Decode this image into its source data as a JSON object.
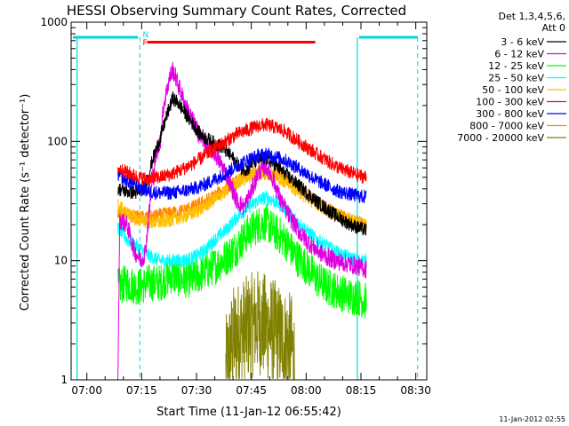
{
  "chart_data": {
    "type": "line",
    "title": "HESSI Observing Summary Count Rates, Corrected",
    "xlabel": "Start Time (11-Jan-12 06:55:42)",
    "ylabel": "Corrected Count Rate (s⁻¹ detector⁻¹)",
    "y_scale": "log",
    "ylim": [
      1,
      1000
    ],
    "xlim_minutes": [
      415.7,
      513
    ],
    "x_ticks": [
      {
        "t": 420,
        "label": "07:00"
      },
      {
        "t": 435,
        "label": "07:15"
      },
      {
        "t": 450,
        "label": "07:30"
      },
      {
        "t": 465,
        "label": "07:45"
      },
      {
        "t": 480,
        "label": "08:00"
      },
      {
        "t": 495,
        "label": "08:15"
      },
      {
        "t": 510,
        "label": "08:30"
      }
    ],
    "y_ticks": [
      {
        "v": 1,
        "label": "1"
      },
      {
        "v": 10,
        "label": "10"
      },
      {
        "v": 100,
        "label": "100"
      },
      {
        "v": 1000,
        "label": "1000"
      }
    ],
    "legend_header": [
      "Det 1,3,4,5,6,",
      "Att 0"
    ],
    "legend_placement": "right",
    "timestamp": "11-Jan-2012 02:55",
    "data_window": [
      428.5,
      496.5
    ],
    "night_intervals": [
      [
        415.7,
        434
      ],
      [
        494,
        510.5
      ]
    ],
    "saa_vlines": [
      434.5,
      510.5
    ],
    "flags": [
      {
        "label": "N",
        "t": 434.8,
        "color": "#00d8d8"
      },
      {
        "label": "F",
        "t": 434.8,
        "color": "#ff0000"
      }
    ],
    "flare_bar": {
      "t_start": 436.5,
      "t_end": 482.5,
      "value": 680,
      "color": "#ff0000"
    },
    "series": [
      {
        "name": "3 - 6 keV",
        "color": "#000000",
        "points": [
          [
            428.5,
            40
          ],
          [
            431,
            38
          ],
          [
            434,
            37
          ],
          [
            436,
            42
          ],
          [
            438,
            70
          ],
          [
            440,
            105
          ],
          [
            442,
            170
          ],
          [
            443.5,
            230
          ],
          [
            445,
            210
          ],
          [
            447,
            170
          ],
          [
            449,
            140
          ],
          [
            451,
            115
          ],
          [
            454,
            100
          ],
          [
            457,
            90
          ],
          [
            460,
            72
          ],
          [
            462,
            60
          ],
          [
            464,
            58
          ],
          [
            465,
            65
          ],
          [
            467,
            70
          ],
          [
            469,
            72
          ],
          [
            471,
            65
          ],
          [
            473,
            58
          ],
          [
            476,
            48
          ],
          [
            479,
            40
          ],
          [
            482,
            33
          ],
          [
            485,
            28
          ],
          [
            488,
            24
          ],
          [
            491,
            21
          ],
          [
            494,
            19
          ],
          [
            496.5,
            18
          ]
        ]
      },
      {
        "name": "6 - 12 keV",
        "color": "#e000e0",
        "points": [
          [
            428.5,
            1
          ],
          [
            429,
            22
          ],
          [
            431,
            20
          ],
          [
            433,
            12
          ],
          [
            435,
            10
          ],
          [
            436,
            12
          ],
          [
            438,
            50
          ],
          [
            439,
            80
          ],
          [
            440,
            95
          ],
          [
            441,
            200
          ],
          [
            442.5,
            330
          ],
          [
            443.5,
            400
          ],
          [
            445,
            300
          ],
          [
            447,
            200
          ],
          [
            449,
            150
          ],
          [
            451,
            110
          ],
          [
            453,
            90
          ],
          [
            455,
            80
          ],
          [
            458,
            55
          ],
          [
            461,
            32
          ],
          [
            463,
            28
          ],
          [
            465,
            38
          ],
          [
            467,
            55
          ],
          [
            469,
            62
          ],
          [
            471,
            48
          ],
          [
            473,
            32
          ],
          [
            476,
            22
          ],
          [
            479,
            16
          ],
          [
            482,
            13
          ],
          [
            485,
            11
          ],
          [
            488,
            10
          ],
          [
            491,
            9.5
          ],
          [
            494,
            9
          ],
          [
            496.5,
            8.5
          ]
        ]
      },
      {
        "name": "12 - 25 keV",
        "color": "#00ff00",
        "points": [
          [
            428.5,
            6
          ],
          [
            431,
            6.5
          ],
          [
            434,
            6
          ],
          [
            437,
            6.5
          ],
          [
            440,
            6.5
          ],
          [
            443,
            7.5
          ],
          [
            446,
            7
          ],
          [
            449,
            7
          ],
          [
            452,
            8
          ],
          [
            455,
            9
          ],
          [
            458,
            10.5
          ],
          [
            461,
            13
          ],
          [
            464,
            17
          ],
          [
            467,
            20
          ],
          [
            469,
            21
          ],
          [
            471,
            18
          ],
          [
            474,
            15
          ],
          [
            477,
            11
          ],
          [
            480,
            9
          ],
          [
            483,
            7
          ],
          [
            486,
            6
          ],
          [
            489,
            5.5
          ],
          [
            492,
            5
          ],
          [
            494,
            5
          ],
          [
            496.5,
            4.5
          ]
        ]
      },
      {
        "name": "25 - 50 keV",
        "color": "#00ffff",
        "points": [
          [
            428.5,
            19
          ],
          [
            431,
            15
          ],
          [
            434,
            13
          ],
          [
            437,
            11
          ],
          [
            440,
            10
          ],
          [
            443,
            10
          ],
          [
            446,
            10
          ],
          [
            449,
            10.5
          ],
          [
            452,
            12
          ],
          [
            455,
            15
          ],
          [
            458,
            18
          ],
          [
            461,
            23
          ],
          [
            464,
            28
          ],
          [
            467,
            32
          ],
          [
            469,
            34
          ],
          [
            471,
            32
          ],
          [
            474,
            28
          ],
          [
            477,
            22
          ],
          [
            480,
            18
          ],
          [
            483,
            15
          ],
          [
            486,
            13
          ],
          [
            489,
            11.5
          ],
          [
            492,
            10.5
          ],
          [
            494,
            10
          ],
          [
            496.5,
            10
          ]
        ]
      },
      {
        "name": "50 - 100 keV",
        "color": "#ffbf00",
        "points": [
          [
            428.5,
            29
          ],
          [
            431,
            25
          ],
          [
            434,
            22
          ],
          [
            437,
            21
          ],
          [
            440,
            21
          ],
          [
            443,
            22
          ],
          [
            446,
            23
          ],
          [
            449,
            25
          ],
          [
            452,
            28
          ],
          [
            455,
            33
          ],
          [
            458,
            38
          ],
          [
            461,
            45
          ],
          [
            464,
            50
          ],
          [
            467,
            53
          ],
          [
            469,
            54
          ],
          [
            471,
            52
          ],
          [
            474,
            47
          ],
          [
            477,
            40
          ],
          [
            480,
            34
          ],
          [
            483,
            30
          ],
          [
            486,
            26
          ],
          [
            489,
            24
          ],
          [
            492,
            22
          ],
          [
            494,
            21
          ],
          [
            496.5,
            20
          ]
        ]
      },
      {
        "name": "100 - 300 keV",
        "color": "#ff0000",
        "points": [
          [
            428.5,
            60
          ],
          [
            431,
            55
          ],
          [
            434,
            50
          ],
          [
            437,
            48
          ],
          [
            440,
            50
          ],
          [
            443,
            53
          ],
          [
            446,
            58
          ],
          [
            449,
            65
          ],
          [
            452,
            75
          ],
          [
            455,
            88
          ],
          [
            458,
            100
          ],
          [
            461,
            115
          ],
          [
            464,
            125
          ],
          [
            467,
            135
          ],
          [
            469,
            138
          ],
          [
            471,
            133
          ],
          [
            474,
            122
          ],
          [
            477,
            105
          ],
          [
            480,
            90
          ],
          [
            483,
            78
          ],
          [
            486,
            68
          ],
          [
            489,
            60
          ],
          [
            492,
            55
          ],
          [
            494,
            52
          ],
          [
            496.5,
            50
          ]
        ]
      },
      {
        "name": "300 - 800 keV",
        "color": "#0000ff",
        "points": [
          [
            428.5,
            53
          ],
          [
            431,
            47
          ],
          [
            434,
            42
          ],
          [
            437,
            38
          ],
          [
            440,
            37
          ],
          [
            443,
            37
          ],
          [
            446,
            38
          ],
          [
            449,
            40
          ],
          [
            452,
            43
          ],
          [
            455,
            48
          ],
          [
            458,
            54
          ],
          [
            461,
            62
          ],
          [
            464,
            70
          ],
          [
            467,
            76
          ],
          [
            469,
            78
          ],
          [
            471,
            76
          ],
          [
            474,
            70
          ],
          [
            477,
            62
          ],
          [
            480,
            54
          ],
          [
            483,
            47
          ],
          [
            486,
            42
          ],
          [
            489,
            38
          ],
          [
            492,
            36
          ],
          [
            494,
            35
          ],
          [
            496.5,
            34
          ]
        ]
      },
      {
        "name": "800 - 7000 keV",
        "color": "#ff8800",
        "points": [
          [
            428.5,
            26
          ],
          [
            431,
            24
          ],
          [
            434,
            23
          ],
          [
            437,
            23
          ],
          [
            440,
            24
          ],
          [
            443,
            25
          ],
          [
            446,
            26
          ],
          [
            449,
            28
          ],
          [
            452,
            31
          ],
          [
            455,
            35
          ],
          [
            458,
            40
          ],
          [
            461,
            46
          ],
          [
            464,
            52
          ],
          [
            467,
            56
          ],
          [
            469,
            57
          ],
          [
            471,
            55
          ],
          [
            474,
            50
          ],
          [
            477,
            43
          ],
          [
            480,
            36
          ],
          [
            483,
            31
          ],
          [
            486,
            27
          ],
          [
            489,
            24
          ],
          [
            492,
            22
          ],
          [
            494,
            21
          ],
          [
            496.5,
            20
          ]
        ]
      },
      {
        "name": "7000 - 20000 keV",
        "color": "#808000",
        "points": [
          [
            458,
            1.2
          ],
          [
            460,
            2.2
          ],
          [
            462,
            2.5
          ],
          [
            464,
            2.7
          ],
          [
            466,
            3
          ],
          [
            467,
            3.1
          ],
          [
            468,
            2.9
          ],
          [
            470,
            2.7
          ],
          [
            472,
            2.4
          ],
          [
            474,
            2.1
          ],
          [
            476,
            1.9
          ],
          [
            477,
            1.3
          ]
        ]
      }
    ]
  }
}
